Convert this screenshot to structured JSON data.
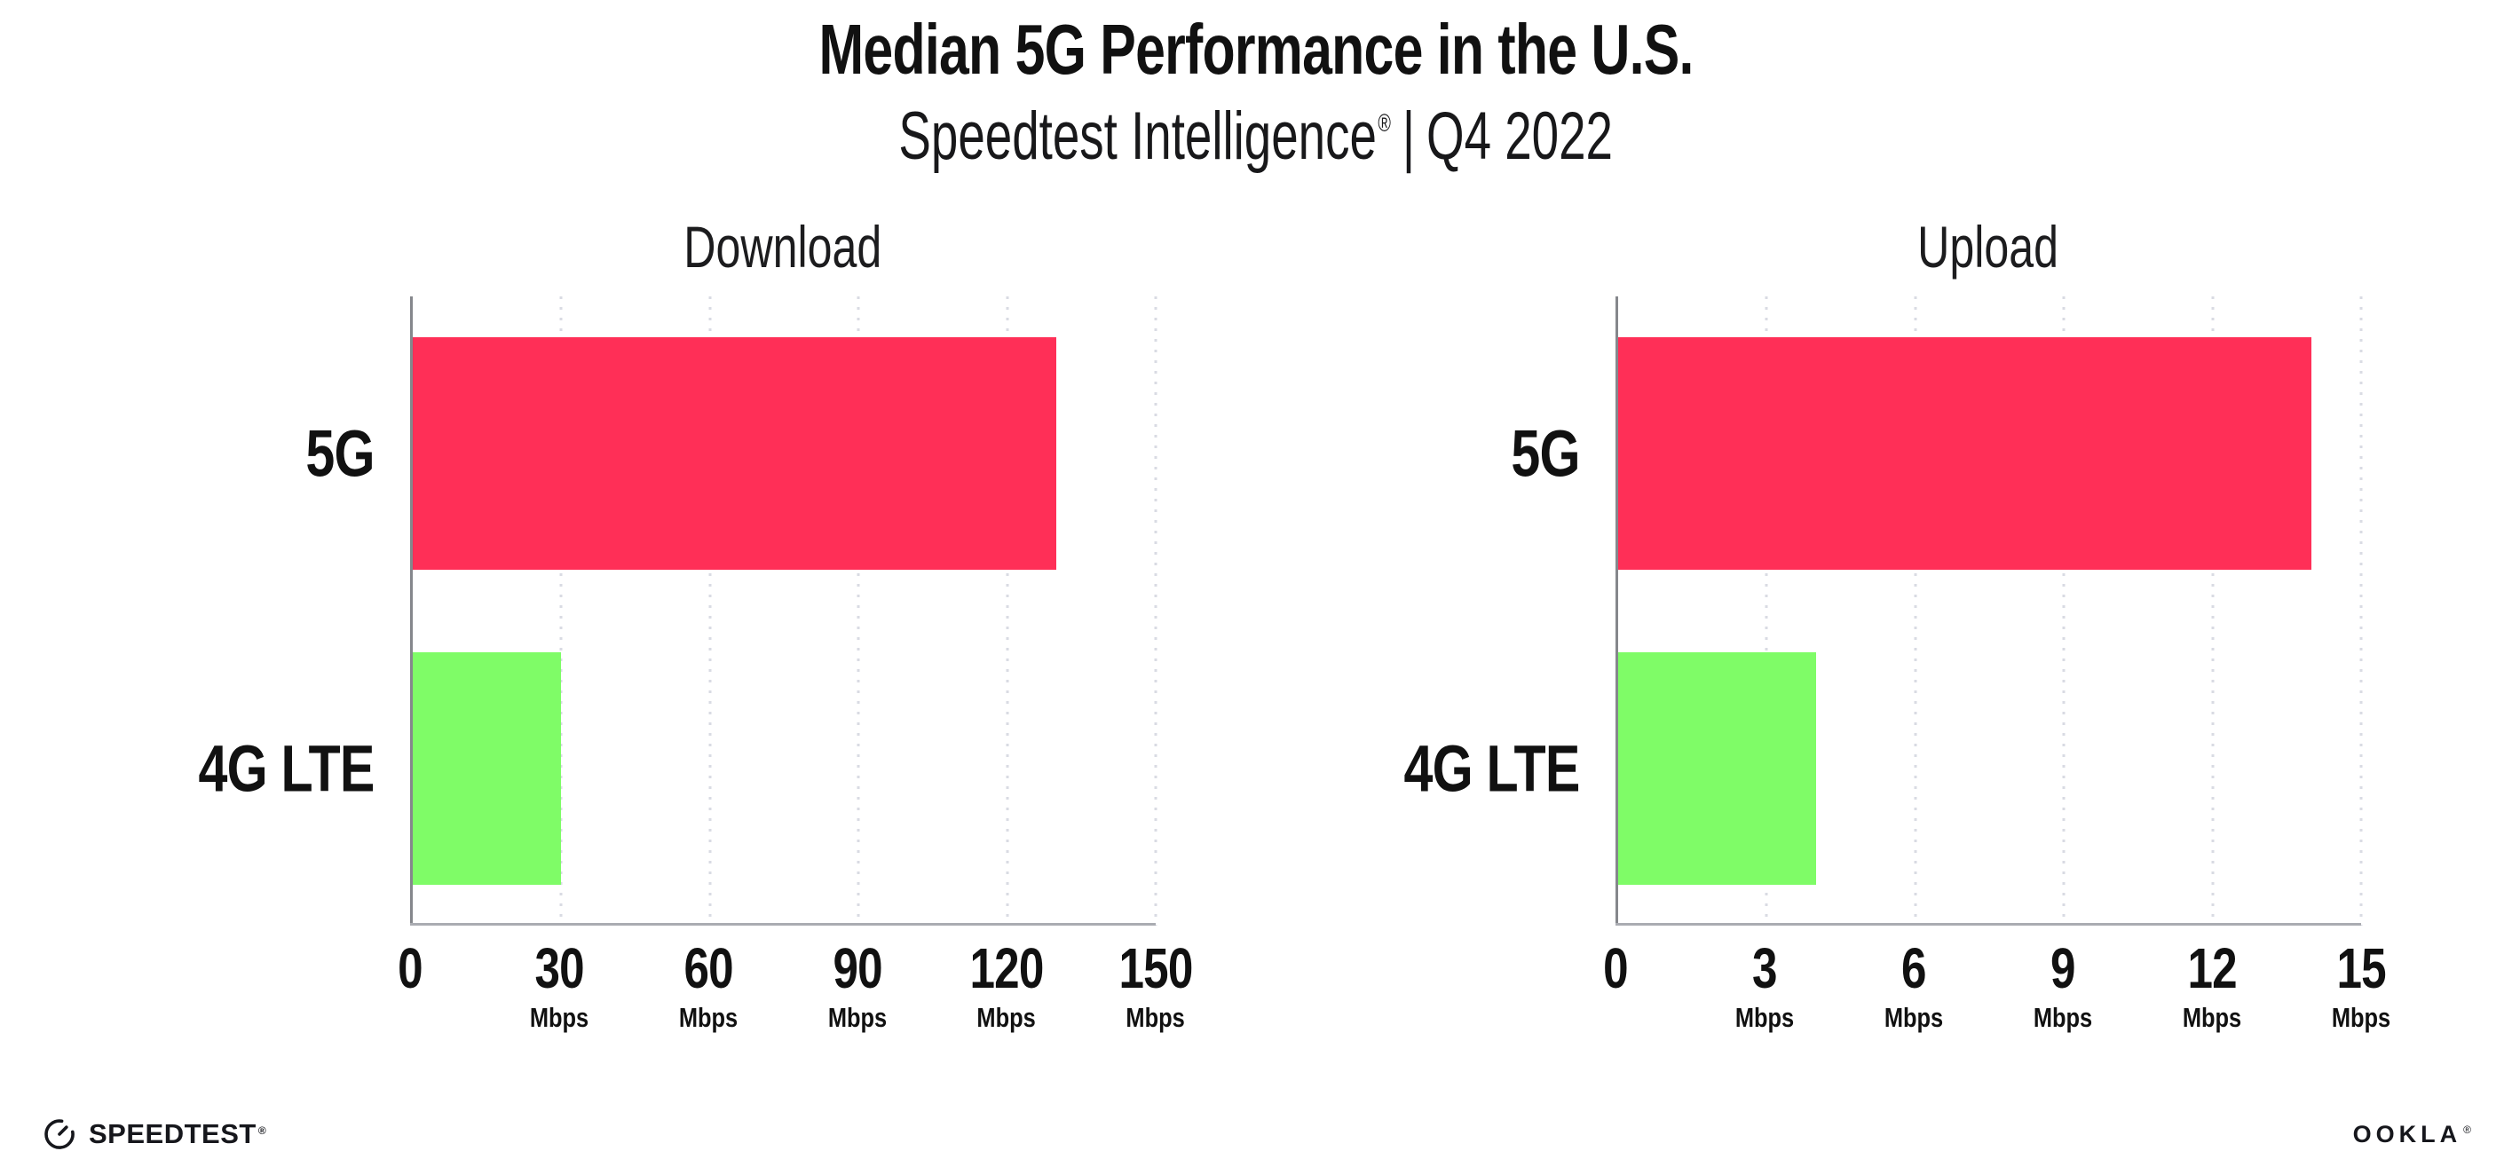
{
  "header": {
    "title": "Median 5G Performance in the U.S.",
    "subtitle_brand": "Speedtest Intelligence",
    "subtitle_reg": "®",
    "subtitle_separator": "|",
    "subtitle_period": "Q4 2022"
  },
  "chart_data": [
    {
      "type": "bar",
      "orientation": "horizontal",
      "title": "Download",
      "categories": [
        "5G",
        "4G LTE"
      ],
      "values": [
        130,
        30
      ],
      "unit": "Mbps",
      "xlim": [
        0,
        150
      ],
      "ticks": [
        0,
        30,
        60,
        90,
        120,
        150
      ],
      "grid": "dotted-vertical",
      "legend": "none",
      "bar_colors": [
        "#ff2f57",
        "#7ffc67"
      ]
    },
    {
      "type": "bar",
      "orientation": "horizontal",
      "title": "Upload",
      "categories": [
        "5G",
        "4G LTE"
      ],
      "values": [
        14,
        4
      ],
      "unit": "Mbps",
      "xlim": [
        0,
        15
      ],
      "ticks": [
        0,
        3,
        6,
        9,
        12,
        15
      ],
      "grid": "dotted-vertical",
      "legend": "none",
      "bar_colors": [
        "#ff2f57",
        "#7ffc67"
      ]
    }
  ],
  "footer": {
    "speedtest_label": "SPEEDTEST",
    "speedtest_mark": "®",
    "speedtest_icon": "gauge-icon",
    "ookla_label": "OOKLA",
    "ookla_mark": "®"
  },
  "colors": {
    "bar_5g": "#ff2f57",
    "bar_4g_lte": "#7ffc67",
    "text": "#111111",
    "y_axis_line": "#85878c",
    "x_axis_line": "#aaacb2",
    "gridline_dots": "#d9dbe3"
  }
}
